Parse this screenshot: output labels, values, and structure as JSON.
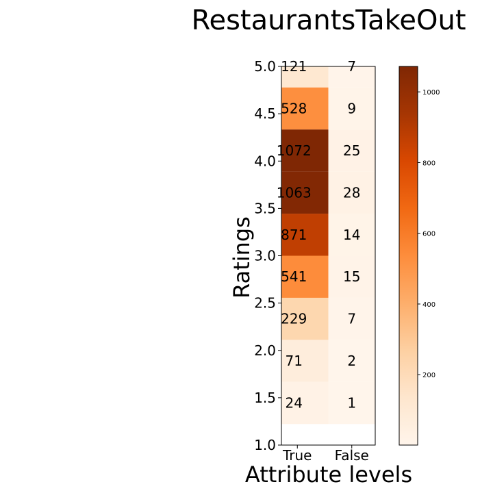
{
  "chart_data": {
    "type": "heatmap",
    "title": "RestaurantsTakeOut",
    "xlabel": "Attribute levels",
    "ylabel": "Ratings",
    "x_categories": [
      "True",
      "False"
    ],
    "y_tick_labels": [
      "1.0",
      "1.5",
      "2.0",
      "2.5",
      "3.0",
      "3.5",
      "4.0",
      "4.5",
      "5.0"
    ],
    "rows": [
      {
        "values": [
          121,
          7
        ]
      },
      {
        "values": [
          528,
          9
        ]
      },
      {
        "values": [
          1072,
          25
        ]
      },
      {
        "values": [
          1063,
          28
        ]
      },
      {
        "values": [
          871,
          14
        ]
      },
      {
        "values": [
          541,
          15
        ]
      },
      {
        "values": [
          229,
          7
        ]
      },
      {
        "values": [
          71,
          2
        ]
      },
      {
        "values": [
          24,
          1
        ]
      }
    ],
    "colorbar": {
      "colormap": "Oranges",
      "range": [
        1,
        1072
      ],
      "tick_labels": [
        "200",
        "400",
        "600",
        "800",
        "1000"
      ],
      "tick_values": [
        200,
        400,
        600,
        800,
        1000
      ]
    },
    "grid": false
  }
}
